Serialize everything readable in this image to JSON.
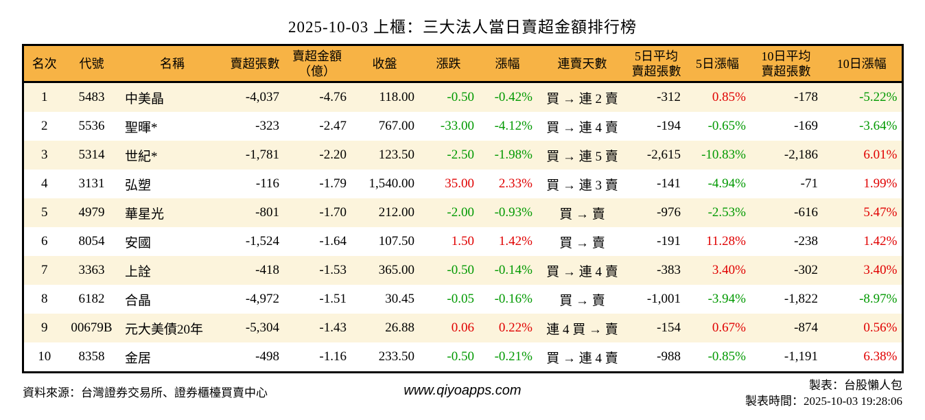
{
  "page": {
    "title": "2025-10-03 上櫃：三大法人當日賣超金額排行榜"
  },
  "colors": {
    "up": "#e00000",
    "down": "#009900",
    "header_bg": "#f7b345",
    "stripe_bg": "#fcf4dc"
  },
  "chart_data": {
    "type": "table",
    "title": "2025-10-03 上櫃：三大法人當日賣超金額排行榜",
    "columns": [
      {
        "id": "rank",
        "label": [
          "名次"
        ],
        "align": "center"
      },
      {
        "id": "code",
        "label": [
          "代號"
        ],
        "align": "center"
      },
      {
        "id": "name",
        "label": [
          "名稱"
        ],
        "align": "left"
      },
      {
        "id": "sell-vol",
        "label": [
          "賣超張數"
        ],
        "align": "right"
      },
      {
        "id": "sell-amt",
        "label": [
          "賣超金額",
          "（億）"
        ],
        "align": "right"
      },
      {
        "id": "close",
        "label": [
          "收盤"
        ],
        "align": "right"
      },
      {
        "id": "change",
        "label": [
          "漲跌"
        ],
        "align": "right"
      },
      {
        "id": "chg-pct",
        "label": [
          "漲幅"
        ],
        "align": "right"
      },
      {
        "id": "streak",
        "label": [
          "連賣天數"
        ],
        "align": "center"
      },
      {
        "id": "avg5",
        "label": [
          "5日平均",
          "賣超張數"
        ],
        "align": "right"
      },
      {
        "id": "pct5",
        "label": [
          "5日漲幅"
        ],
        "align": "right"
      },
      {
        "id": "avg10",
        "label": [
          "10日平均",
          "賣超張數"
        ],
        "align": "right"
      },
      {
        "id": "pct10",
        "label": [
          "10日漲幅"
        ],
        "align": "right"
      }
    ],
    "rows": [
      [
        {
          "t": "1"
        },
        {
          "t": "5483"
        },
        {
          "t": "中美晶"
        },
        {
          "t": "-4,037"
        },
        {
          "t": "-4.76"
        },
        {
          "t": "118.00"
        },
        {
          "t": "-0.50",
          "c": "down"
        },
        {
          "t": "-0.42%",
          "c": "down"
        },
        {
          "t": "買 → 連 2 賣"
        },
        {
          "t": "-312"
        },
        {
          "t": "0.85%",
          "c": "up"
        },
        {
          "t": "-178"
        },
        {
          "t": "-5.22%",
          "c": "down"
        }
      ],
      [
        {
          "t": "2"
        },
        {
          "t": "5536"
        },
        {
          "t": "聖暉*"
        },
        {
          "t": "-323"
        },
        {
          "t": "-2.47"
        },
        {
          "t": "767.00"
        },
        {
          "t": "-33.00",
          "c": "down"
        },
        {
          "t": "-4.12%",
          "c": "down"
        },
        {
          "t": "買 → 連 4 賣"
        },
        {
          "t": "-194"
        },
        {
          "t": "-0.65%",
          "c": "down"
        },
        {
          "t": "-169"
        },
        {
          "t": "-3.64%",
          "c": "down"
        }
      ],
      [
        {
          "t": "3"
        },
        {
          "t": "5314"
        },
        {
          "t": "世紀*"
        },
        {
          "t": "-1,781"
        },
        {
          "t": "-2.20"
        },
        {
          "t": "123.50"
        },
        {
          "t": "-2.50",
          "c": "down"
        },
        {
          "t": "-1.98%",
          "c": "down"
        },
        {
          "t": "買 → 連 5 賣"
        },
        {
          "t": "-2,615"
        },
        {
          "t": "-10.83%",
          "c": "down"
        },
        {
          "t": "-2,186"
        },
        {
          "t": "6.01%",
          "c": "up"
        }
      ],
      [
        {
          "t": "4"
        },
        {
          "t": "3131"
        },
        {
          "t": "弘塑"
        },
        {
          "t": "-116"
        },
        {
          "t": "-1.79"
        },
        {
          "t": "1,540.00"
        },
        {
          "t": "35.00",
          "c": "up"
        },
        {
          "t": "2.33%",
          "c": "up"
        },
        {
          "t": "買 → 連 3 賣"
        },
        {
          "t": "-141"
        },
        {
          "t": "-4.94%",
          "c": "down"
        },
        {
          "t": "-71"
        },
        {
          "t": "1.99%",
          "c": "up"
        }
      ],
      [
        {
          "t": "5"
        },
        {
          "t": "4979"
        },
        {
          "t": "華星光"
        },
        {
          "t": "-801"
        },
        {
          "t": "-1.70"
        },
        {
          "t": "212.00"
        },
        {
          "t": "-2.00",
          "c": "down"
        },
        {
          "t": "-0.93%",
          "c": "down"
        },
        {
          "t": "買 → 賣"
        },
        {
          "t": "-976"
        },
        {
          "t": "-2.53%",
          "c": "down"
        },
        {
          "t": "-616"
        },
        {
          "t": "5.47%",
          "c": "up"
        }
      ],
      [
        {
          "t": "6"
        },
        {
          "t": "8054"
        },
        {
          "t": "安國"
        },
        {
          "t": "-1,524"
        },
        {
          "t": "-1.64"
        },
        {
          "t": "107.50"
        },
        {
          "t": "1.50",
          "c": "up"
        },
        {
          "t": "1.42%",
          "c": "up"
        },
        {
          "t": "買 → 賣"
        },
        {
          "t": "-191"
        },
        {
          "t": "11.28%",
          "c": "up"
        },
        {
          "t": "-238"
        },
        {
          "t": "1.42%",
          "c": "up"
        }
      ],
      [
        {
          "t": "7"
        },
        {
          "t": "3363"
        },
        {
          "t": "上詮"
        },
        {
          "t": "-418"
        },
        {
          "t": "-1.53"
        },
        {
          "t": "365.00"
        },
        {
          "t": "-0.50",
          "c": "down"
        },
        {
          "t": "-0.14%",
          "c": "down"
        },
        {
          "t": "買 → 連 4 賣"
        },
        {
          "t": "-383"
        },
        {
          "t": "3.40%",
          "c": "up"
        },
        {
          "t": "-302"
        },
        {
          "t": "3.40%",
          "c": "up"
        }
      ],
      [
        {
          "t": "8"
        },
        {
          "t": "6182"
        },
        {
          "t": "合晶"
        },
        {
          "t": "-4,972"
        },
        {
          "t": "-1.51"
        },
        {
          "t": "30.45"
        },
        {
          "t": "-0.05",
          "c": "down"
        },
        {
          "t": "-0.16%",
          "c": "down"
        },
        {
          "t": "買 → 賣"
        },
        {
          "t": "-1,001"
        },
        {
          "t": "-3.94%",
          "c": "down"
        },
        {
          "t": "-1,822"
        },
        {
          "t": "-8.97%",
          "c": "down"
        }
      ],
      [
        {
          "t": "9"
        },
        {
          "t": "00679B"
        },
        {
          "t": "元大美債20年"
        },
        {
          "t": "-5,304"
        },
        {
          "t": "-1.43"
        },
        {
          "t": "26.88"
        },
        {
          "t": "0.06",
          "c": "up"
        },
        {
          "t": "0.22%",
          "c": "up"
        },
        {
          "t": "連 4 買 → 賣"
        },
        {
          "t": "-154"
        },
        {
          "t": "0.67%",
          "c": "up"
        },
        {
          "t": "-874"
        },
        {
          "t": "0.56%",
          "c": "up"
        }
      ],
      [
        {
          "t": "10"
        },
        {
          "t": "8358"
        },
        {
          "t": "金居"
        },
        {
          "t": "-498"
        },
        {
          "t": "-1.16"
        },
        {
          "t": "233.50"
        },
        {
          "t": "-0.50",
          "c": "down"
        },
        {
          "t": "-0.21%",
          "c": "down"
        },
        {
          "t": "買 → 連 4 賣"
        },
        {
          "t": "-988"
        },
        {
          "t": "-0.85%",
          "c": "down"
        },
        {
          "t": "-1,191"
        },
        {
          "t": "6.38%",
          "c": "up"
        }
      ]
    ]
  },
  "footer": {
    "source": "資料來源：台灣證券交易所、證券櫃檯買賣中心",
    "website": "www.qiyoapps.com",
    "author": "製表：台股懶人包",
    "timestamp": "製表時間：2025-10-03 19:28:06"
  }
}
